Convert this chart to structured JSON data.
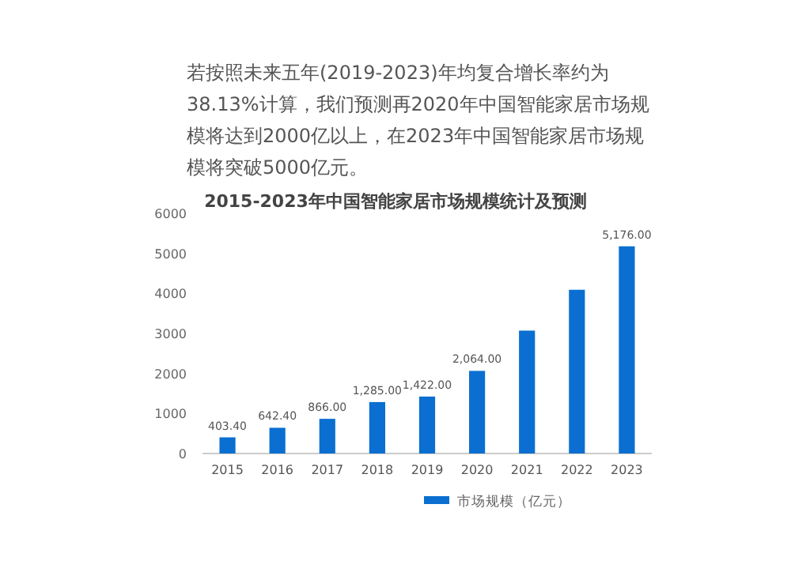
{
  "chart_data": {
    "type": "bar",
    "title": "2015-2023年中国智能家居市场规模统计及预测",
    "annotations": [
      "若按照未来五年(2019-2023)年均复合增长率约为38.13%计算，我们预测再2020年中国智能家居市场规模将达到2000亿以上，在2023年中国智能家居市场规模将突破5000亿元。"
    ],
    "categories": [
      "2015",
      "2016",
      "2017",
      "2018",
      "2019",
      "2020",
      "2021",
      "2022",
      "2023"
    ],
    "series": [
      {
        "name": "市场规模（亿元）",
        "color": "#0a6fd0",
        "values": [
          403.4,
          642.4,
          866,
          1285,
          1422,
          2064,
          3070,
          4090,
          5176
        ],
        "value_labels": [
          "403.40",
          "642.40",
          "866.00",
          "1,285.00",
          "1,422.00",
          "2,064.00",
          null,
          null,
          "5,176.00"
        ]
      }
    ],
    "ylim": [
      0,
      6000
    ],
    "yticks": [
      0,
      1000,
      2000,
      3000,
      4000,
      5000,
      6000
    ],
    "legend": "bottom"
  }
}
